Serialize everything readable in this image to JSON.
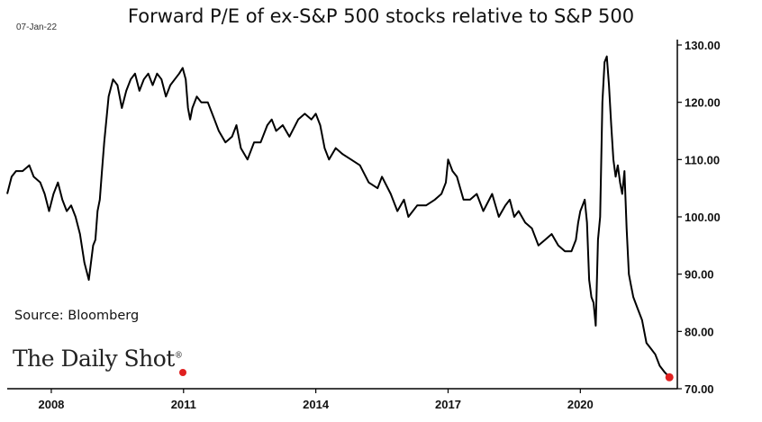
{
  "date_stamp": "07-Jan-22",
  "source": "Source: Bloomberg",
  "logo": {
    "text": "The Daily Shot",
    "mark": "®"
  },
  "colors": {
    "line": "#000000",
    "last_point": "#e02020",
    "axis": "#000000"
  },
  "chart_data": {
    "type": "line",
    "title": "Forward P/E of ex-S&P 500 stocks relative to S&P 500",
    "xlabel": "",
    "ylabel": "",
    "y_axis_side": "right",
    "grid": false,
    "xlim": [
      2007.0,
      2022.2
    ],
    "ylim": [
      70,
      130
    ],
    "x_ticks": [
      2008,
      2011,
      2014,
      2017,
      2020
    ],
    "x_tick_labels": [
      "2008",
      "2011",
      "2014",
      "2017",
      "2020"
    ],
    "y_ticks": [
      70,
      80,
      90,
      100,
      110,
      120,
      130
    ],
    "y_tick_labels": [
      "70.00",
      "80.00",
      "90.00",
      "100.00",
      "110.00",
      "120.00",
      "130.00"
    ],
    "series": [
      {
        "x": [
          2007.0,
          2007.1,
          2007.2,
          2007.35,
          2007.5,
          2007.6,
          2007.75,
          2007.85,
          2007.95,
          2008.05,
          2008.15,
          2008.25,
          2008.35,
          2008.45,
          2008.55,
          2008.65,
          2008.75,
          2008.85,
          2008.95,
          2009.0,
          2009.05,
          2009.1,
          2009.15,
          2009.2,
          2009.3,
          2009.4,
          2009.5,
          2009.6,
          2009.7,
          2009.8,
          2009.9,
          2010.0,
          2010.1,
          2010.2,
          2010.3,
          2010.4,
          2010.5,
          2010.6,
          2010.7,
          2010.8,
          2010.9,
          2010.98,
          2011.05,
          2011.1,
          2011.15,
          2011.2,
          2011.3,
          2011.4,
          2011.55,
          2011.7,
          2011.8,
          2011.95,
          2012.1,
          2012.2,
          2012.3,
          2012.45,
          2012.6,
          2012.75,
          2012.9,
          2013.0,
          2013.1,
          2013.25,
          2013.4,
          2013.6,
          2013.75,
          2013.9,
          2014.0,
          2014.1,
          2014.2,
          2014.3,
          2014.45,
          2014.6,
          2014.8,
          2015.0,
          2015.2,
          2015.4,
          2015.5,
          2015.7,
          2015.85,
          2016.0,
          2016.1,
          2016.3,
          2016.5,
          2016.7,
          2016.85,
          2016.95,
          2017.0,
          2017.1,
          2017.2,
          2017.35,
          2017.5,
          2017.65,
          2017.8,
          2018.0,
          2018.15,
          2018.3,
          2018.4,
          2018.5,
          2018.6,
          2018.75,
          2018.9,
          2019.05,
          2019.2,
          2019.35,
          2019.5,
          2019.65,
          2019.8,
          2019.9,
          2019.95,
          2020.0,
          2020.05,
          2020.1,
          2020.15,
          2020.2,
          2020.25,
          2020.3,
          2020.35,
          2020.4,
          2020.45,
          2020.5,
          2020.55,
          2020.6,
          2020.65,
          2020.7,
          2020.75,
          2020.8,
          2020.85,
          2020.9,
          2020.95,
          2021.0,
          2021.05,
          2021.1,
          2021.15,
          2021.2,
          2021.3,
          2021.4,
          2021.5,
          2021.6,
          2021.7,
          2021.8,
          2021.9,
          2022.02
        ],
        "y": [
          104,
          107,
          108,
          108,
          109,
          107,
          106,
          104,
          101,
          104,
          106,
          103,
          101,
          102,
          100,
          97,
          92,
          89,
          95,
          96,
          101,
          103,
          108,
          113,
          121,
          124,
          123,
          119,
          122,
          124,
          125,
          122,
          124,
          125,
          123,
          125,
          124,
          121,
          123,
          124,
          125,
          126,
          124,
          119,
          117,
          119,
          121,
          120,
          120,
          117,
          115,
          113,
          114,
          116,
          112,
          110,
          113,
          113,
          116,
          117,
          115,
          116,
          114,
          117,
          118,
          117,
          118,
          116,
          112,
          110,
          112,
          111,
          110,
          109,
          106,
          105,
          107,
          104,
          101,
          103,
          100,
          102,
          102,
          103,
          104,
          106,
          110,
          108,
          107,
          103,
          103,
          104,
          101,
          104,
          100,
          102,
          103,
          100,
          101,
          99,
          98,
          95,
          96,
          97,
          95,
          94,
          94,
          96,
          99,
          101,
          102,
          103,
          99,
          89,
          86,
          85,
          81,
          96,
          100,
          120,
          127,
          128,
          123,
          116,
          110,
          107,
          109,
          106,
          104,
          108,
          98,
          90,
          88,
          86,
          84,
          82,
          78,
          77,
          76,
          74,
          73,
          72
        ]
      }
    ],
    "last_point": {
      "x": 2022.02,
      "y": 72
    }
  }
}
